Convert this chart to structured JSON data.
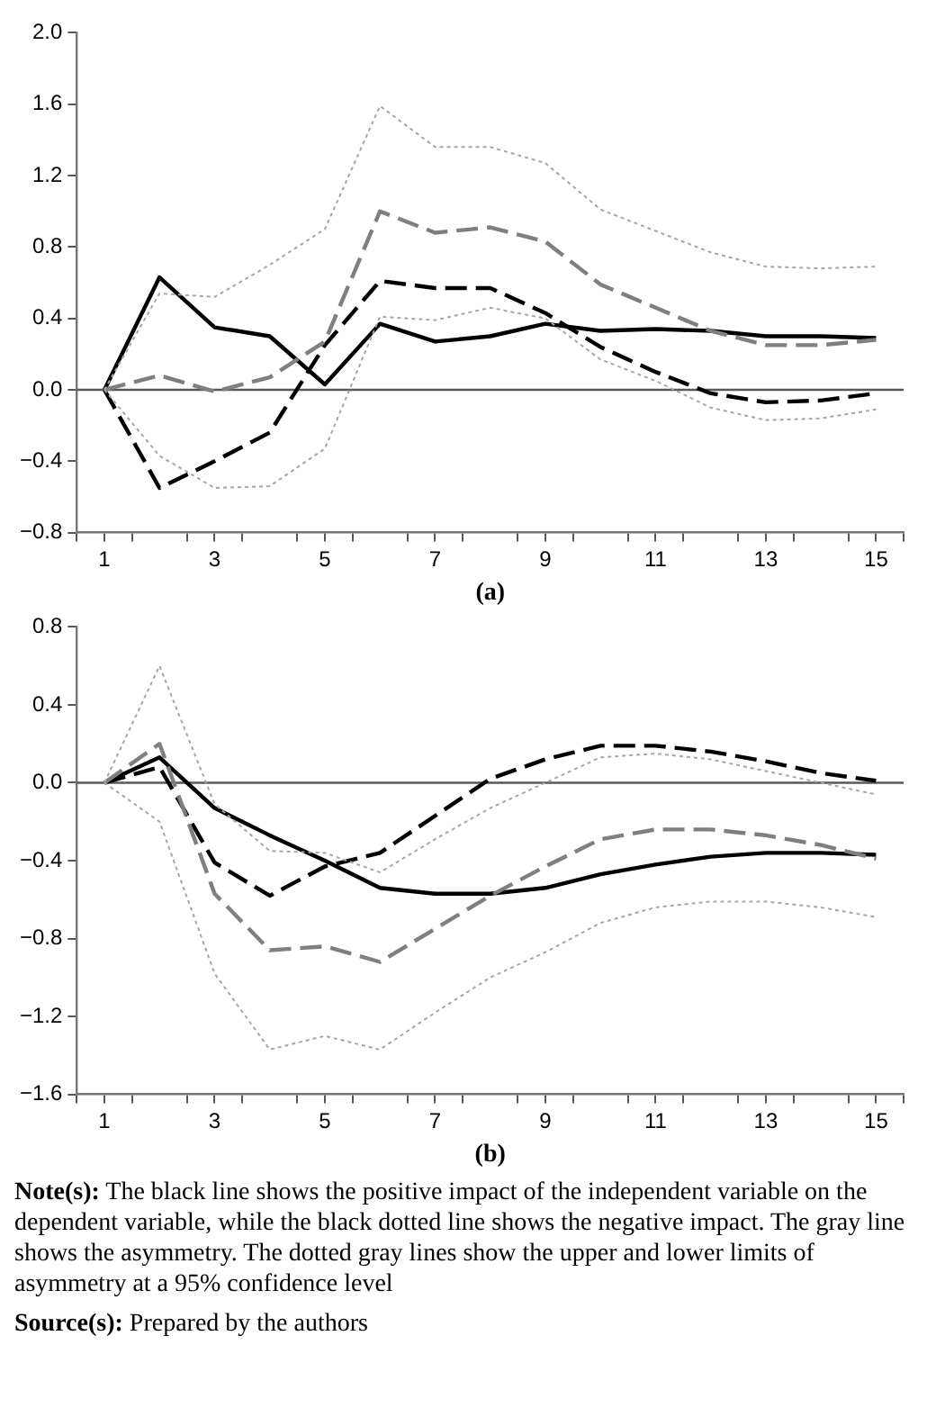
{
  "chart_data": [
    {
      "type": "line",
      "xlabel": "(a)",
      "xlim": [
        0.5,
        15.5
      ],
      "xticks": [
        {
          "value": 0.5,
          "label": null
        },
        1,
        {
          "value": 1.5,
          "label": null
        },
        {
          "value": 2.5,
          "label": null
        },
        3,
        {
          "value": 3.5,
          "label": null
        },
        {
          "value": 4.5,
          "label": null
        },
        5,
        {
          "value": 5.5,
          "label": null
        },
        {
          "value": 6.5,
          "label": null
        },
        7,
        {
          "value": 7.5,
          "label": null
        },
        {
          "value": 8.5,
          "label": null
        },
        9,
        {
          "value": 9.5,
          "label": null
        },
        {
          "value": 10.5,
          "label": null
        },
        11,
        {
          "value": 11.5,
          "label": null
        },
        {
          "value": 12.5,
          "label": null
        },
        13,
        {
          "value": 13.5,
          "label": null
        },
        {
          "value": 14.5,
          "label": null
        },
        15,
        {
          "value": 15.5,
          "label": null
        }
      ],
      "ylim": [
        -0.8,
        2.0
      ],
      "yticks": [
        {
          "value": -0.8,
          "label": "−0.8"
        },
        {
          "value": -0.4,
          "label": "−0.4"
        },
        {
          "value": 0,
          "label": "0.0"
        },
        {
          "value": 0.4,
          "label": "0.4"
        },
        {
          "value": 0.8,
          "label": "0.8"
        },
        {
          "value": 1.2,
          "label": "1.2"
        },
        {
          "value": 1.6,
          "label": "1.6"
        },
        {
          "value": 2,
          "label": "2.0"
        }
      ],
      "x": [
        1,
        2,
        3,
        4,
        5,
        6,
        7,
        8,
        9,
        10,
        11,
        12,
        13,
        14,
        15
      ],
      "grid": false,
      "legend": false,
      "marker": "none",
      "ref_lines": [
        {
          "axis": "y",
          "value": 0,
          "color": "#595959"
        }
      ],
      "series": [
        {
          "color": "#a6a6a6",
          "line_style": "dotted",
          "values": [
            0,
            0.54,
            0.52,
            0.7,
            0.9,
            1.59,
            1.36,
            1.36,
            1.27,
            1.01,
            0.89,
            0.77,
            0.69,
            0.68,
            0.69
          ]
        },
        {
          "color": "#a6a6a6",
          "line_style": "dotted",
          "values": [
            0,
            -0.37,
            -0.55,
            -0.54,
            -0.33,
            0.41,
            0.39,
            0.46,
            0.4,
            0.17,
            0.05,
            -0.1,
            -0.17,
            -0.16,
            -0.11
          ]
        },
        {
          "color": "#7f7f7f",
          "line_style": "dashed",
          "values": [
            0,
            0.08,
            -0.01,
            0.07,
            0.27,
            1.0,
            0.88,
            0.91,
            0.83,
            0.59,
            0.46,
            0.33,
            0.25,
            0.25,
            0.28
          ]
        },
        {
          "color": "#000000",
          "line_style": "dashed",
          "values": [
            0,
            -0.55,
            -0.4,
            -0.24,
            0.25,
            0.61,
            0.57,
            0.57,
            0.43,
            0.24,
            0.1,
            -0.02,
            -0.07,
            -0.06,
            -0.02
          ]
        },
        {
          "color": "#000000",
          "line_style": "solid",
          "values": [
            0,
            0.63,
            0.35,
            0.3,
            0.03,
            0.37,
            0.27,
            0.3,
            0.37,
            0.33,
            0.34,
            0.33,
            0.3,
            0.3,
            0.29
          ]
        }
      ]
    },
    {
      "type": "line",
      "xlabel": "(b)",
      "xlim": [
        0.5,
        15.5
      ],
      "xticks": [
        {
          "value": 0.5,
          "label": null
        },
        1,
        {
          "value": 1.5,
          "label": null
        },
        {
          "value": 2.5,
          "label": null
        },
        3,
        {
          "value": 3.5,
          "label": null
        },
        {
          "value": 4.5,
          "label": null
        },
        5,
        {
          "value": 5.5,
          "label": null
        },
        {
          "value": 6.5,
          "label": null
        },
        7,
        {
          "value": 7.5,
          "label": null
        },
        {
          "value": 8.5,
          "label": null
        },
        9,
        {
          "value": 9.5,
          "label": null
        },
        {
          "value": 10.5,
          "label": null
        },
        11,
        {
          "value": 11.5,
          "label": null
        },
        {
          "value": 12.5,
          "label": null
        },
        13,
        {
          "value": 13.5,
          "label": null
        },
        {
          "value": 14.5,
          "label": null
        },
        15,
        {
          "value": 15.5,
          "label": null
        }
      ],
      "ylim": [
        -1.6,
        0.8
      ],
      "yticks": [
        {
          "value": -1.6,
          "label": "−1.6"
        },
        {
          "value": -1.2,
          "label": "−1.2"
        },
        {
          "value": -0.8,
          "label": "−0.8"
        },
        {
          "value": -0.4,
          "label": "−0.4"
        },
        {
          "value": 0,
          "label": "0.0"
        },
        {
          "value": 0.4,
          "label": "0.4"
        },
        {
          "value": 0.8,
          "label": "0.8"
        }
      ],
      "x": [
        1,
        2,
        3,
        4,
        5,
        6,
        7,
        8,
        9,
        10,
        11,
        12,
        13,
        14,
        15
      ],
      "grid": false,
      "legend": false,
      "marker": "none",
      "ref_lines": [
        {
          "axis": "y",
          "value": 0,
          "color": "#595959"
        }
      ],
      "series": [
        {
          "color": "#a6a6a6",
          "line_style": "dotted",
          "values": [
            0,
            0.6,
            -0.11,
            -0.35,
            -0.36,
            -0.46,
            -0.29,
            -0.13,
            0.0,
            0.13,
            0.15,
            0.12,
            0.06,
            0.0,
            -0.06
          ]
        },
        {
          "color": "#a6a6a6",
          "line_style": "dotted",
          "values": [
            0,
            -0.2,
            -0.98,
            -1.37,
            -1.3,
            -1.37,
            -1.18,
            -1.0,
            -0.87,
            -0.72,
            -0.64,
            -0.61,
            -0.61,
            -0.64,
            -0.69
          ]
        },
        {
          "color": "#7f7f7f",
          "line_style": "dashed",
          "values": [
            0,
            0.2,
            -0.57,
            -0.86,
            -0.84,
            -0.92,
            -0.75,
            -0.58,
            -0.43,
            -0.29,
            -0.24,
            -0.24,
            -0.27,
            -0.32,
            -0.39
          ]
        },
        {
          "color": "#000000",
          "line_style": "dashed",
          "values": [
            0,
            0.08,
            -0.41,
            -0.58,
            -0.43,
            -0.36,
            -0.17,
            0.02,
            0.12,
            0.19,
            0.19,
            0.16,
            0.11,
            0.05,
            0.01
          ]
        },
        {
          "color": "#000000",
          "line_style": "solid",
          "values": [
            0,
            0.13,
            -0.13,
            -0.27,
            -0.4,
            -0.54,
            -0.57,
            -0.57,
            -0.54,
            -0.47,
            -0.42,
            -0.38,
            -0.36,
            -0.36,
            -0.37
          ]
        }
      ],
      "annotations": [
        "Note(s): The black line shows the positive impact of the independent variable on the dependent variable, while the black dotted line shows the negative impact. The gray line shows the asymmetry. The dotted gray lines show the upper and lower limits of asymmetry at a 95% confidence level",
        "Source(s): Prepared by the authors"
      ]
    }
  ]
}
